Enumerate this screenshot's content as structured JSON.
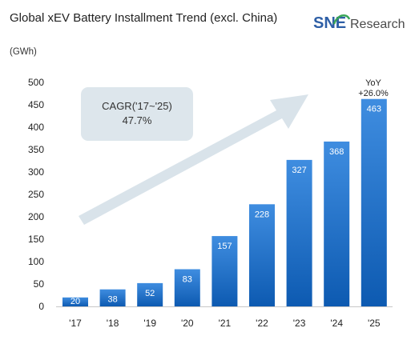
{
  "title": "Global xEV Battery Installment Trend (excl. China)",
  "logo": {
    "brand": "SNE",
    "suffix": "Research",
    "colors": {
      "brand": "#2e5fa6",
      "green": "#3aa657",
      "text": "#4a4a4a"
    }
  },
  "colors": {
    "bar_top": "#3f8de0",
    "bar_bottom": "#0d5ab1",
    "annotation_box": "#dde6ec",
    "arrow": "#d9e3ea"
  },
  "chart_data": {
    "type": "bar",
    "unit_label": "(GWh)",
    "categories": [
      "'17",
      "'18",
      "'19",
      "'20",
      "'21",
      "'22",
      "'23",
      "'24",
      "'25"
    ],
    "values": [
      20,
      38,
      52,
      83,
      157,
      228,
      327,
      368,
      463
    ],
    "data_labels": [
      "20",
      "38",
      "52",
      "83",
      "157",
      "228",
      "327",
      "368",
      "463"
    ],
    "yticks": [
      "0",
      "50",
      "100",
      "150",
      "200",
      "250",
      "300",
      "350",
      "400",
      "450",
      "500"
    ],
    "ylim": [
      0,
      500
    ],
    "grid": false,
    "annotations": {
      "cagr_line1": "CAGR('17~'25)",
      "cagr_line2": "47.7%",
      "yoy_line1": "YoY",
      "yoy_line2": "+26.0%"
    }
  }
}
